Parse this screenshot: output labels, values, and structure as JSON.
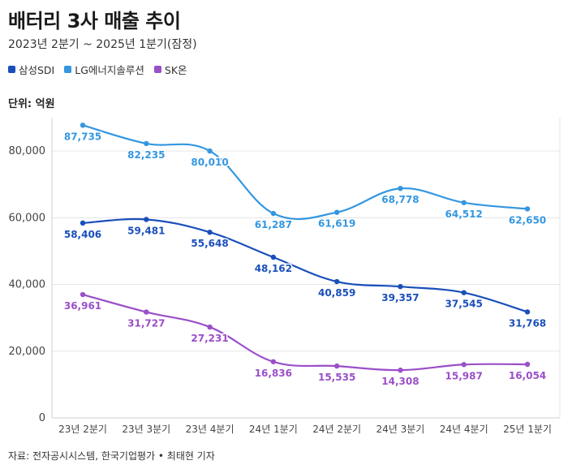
{
  "header": {
    "title": "배터리 3사 매출 추이",
    "subtitle": "2023년 2분기 ~ 2025년 1분기(잠정)",
    "unit": "단위: 억원"
  },
  "source": "자료: 전자공시시스템, 한국기업평가 • 최태현 기자",
  "chart_data": {
    "type": "line",
    "categories": [
      "23년 2분기",
      "23년 3분기",
      "23년 4분기",
      "24년 1분기",
      "24년 2분기",
      "24년 3분기",
      "24년 4분기",
      "25년 1분기"
    ],
    "ylim": [
      0,
      90000
    ],
    "yticks": [
      0,
      20000,
      40000,
      60000,
      80000
    ],
    "ytick_labels": [
      "0",
      "20,000",
      "40,000",
      "60,000",
      "80,000"
    ],
    "grid": true,
    "legend": "top-left",
    "series": [
      {
        "name": "삼성SDI",
        "color": "#1a4fba",
        "values": [
          58406,
          59481,
          55648,
          48162,
          40859,
          39357,
          37545,
          31768
        ],
        "labels": [
          "58,406",
          "59,481",
          "55,648",
          "48,162",
          "40,859",
          "39,357",
          "37,545",
          "31,768"
        ]
      },
      {
        "name": "LG에너지솔루션",
        "color": "#3497e0",
        "values": [
          87735,
          82235,
          80010,
          61287,
          61619,
          68778,
          64512,
          62650
        ],
        "labels": [
          "87,735",
          "82,235",
          "80,010",
          "61,287",
          "61,619",
          "68,778",
          "64,512",
          "62,650"
        ]
      },
      {
        "name": "SK온",
        "color": "#9a4fc9",
        "values": [
          36961,
          31727,
          27231,
          16836,
          15535,
          14308,
          15987,
          16054
        ],
        "labels": [
          "36,961",
          "31,727",
          "27,231",
          "16,836",
          "15,535",
          "14,308",
          "15,987",
          "16,054"
        ]
      }
    ]
  }
}
